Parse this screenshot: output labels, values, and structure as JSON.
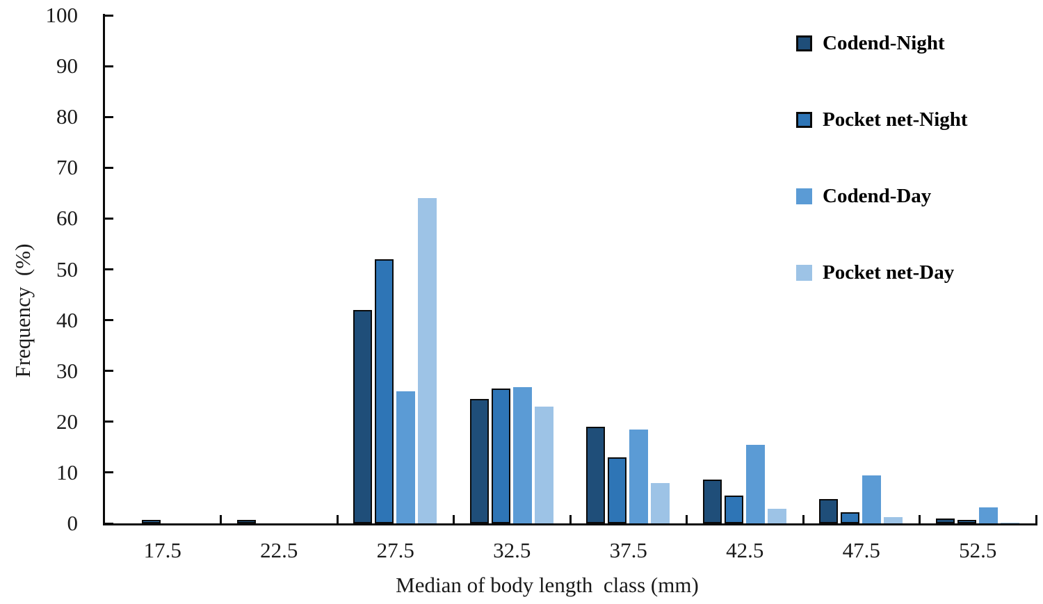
{
  "chart_data": {
    "type": "bar",
    "title": "",
    "xlabel": "Median of body length  class (mm)",
    "ylabel": "Frequency  (%)",
    "categories": [
      "17.5",
      "22.5",
      "27.5",
      "32.5",
      "37.5",
      "42.5",
      "47.5",
      "52.5"
    ],
    "series": [
      {
        "name": "Codend-Night",
        "color": "#1F4E79",
        "bordered": true,
        "values": [
          0,
          0.4,
          42,
          24.5,
          19,
          8.6,
          4.8,
          1.0
        ]
      },
      {
        "name": "Pocket net-Night",
        "color": "#2E75B6",
        "bordered": true,
        "values": [
          0.4,
          0,
          52,
          26.5,
          13,
          5.5,
          2.2,
          0.5
        ]
      },
      {
        "name": "Codend-Day",
        "color": "#5B9BD5",
        "bordered": false,
        "values": [
          0,
          0,
          26,
          26.8,
          18.5,
          15.4,
          9.5,
          3.2
        ]
      },
      {
        "name": "Pocket net-Day",
        "color": "#9DC3E6",
        "bordered": false,
        "values": [
          0,
          0,
          64,
          23,
          8,
          2.9,
          1.2,
          0.2
        ]
      }
    ],
    "ylim": [
      0,
      100
    ],
    "y_ticks": [
      0,
      10,
      20,
      30,
      40,
      50,
      60,
      70,
      80,
      90,
      100
    ],
    "grid": false,
    "legend_position": "top-right",
    "axis_color": "#0a0a0a",
    "bar_border_color": "#0a0a0a",
    "background_color": "#ffffff"
  }
}
